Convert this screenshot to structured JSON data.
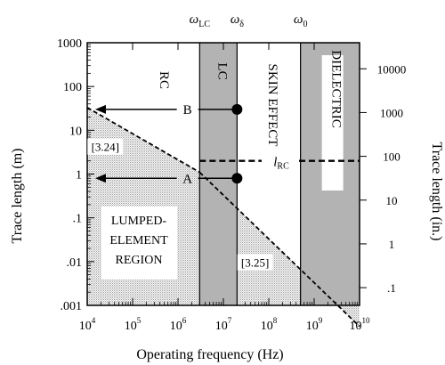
{
  "chart_data": {
    "type": "line",
    "title": "",
    "xlabel": "Operating frequency (Hz)",
    "ylabel": "Trace length (m)",
    "y2label": "Trace length (in.)",
    "x_scale": "log",
    "y_scale": "log",
    "xlim": [
      10000,
      10000000000
    ],
    "ylim": [
      0.001,
      1000
    ],
    "y2lim": [
      0.0394,
      39370
    ],
    "grid": false,
    "legend": "none",
    "x_ticks": [
      {
        "value": 10000,
        "base": "10",
        "exp": "4"
      },
      {
        "value": 100000,
        "base": "10",
        "exp": "5"
      },
      {
        "value": 1000000,
        "base": "10",
        "exp": "6"
      },
      {
        "value": 10000000,
        "base": "10",
        "exp": "7"
      },
      {
        "value": 100000000,
        "base": "10",
        "exp": "8"
      },
      {
        "value": 1000000000,
        "base": "10",
        "exp": "9"
      },
      {
        "value": 10000000000,
        "base": "10",
        "exp": "10"
      }
    ],
    "y_ticks": [
      {
        "value": 1000,
        "label": "1000"
      },
      {
        "value": 100,
        "label": "100"
      },
      {
        "value": 10,
        "label": "10"
      },
      {
        "value": 1,
        "label": "1"
      },
      {
        "value": 0.1,
        "label": ".1"
      },
      {
        "value": 0.01,
        "label": ".01"
      },
      {
        "value": 0.001,
        "label": ".001"
      }
    ],
    "y2_ticks": [
      {
        "value": 10000,
        "label": "10000"
      },
      {
        "value": 1000,
        "label": "1000"
      },
      {
        "value": 100,
        "label": "100"
      },
      {
        "value": 10,
        "label": "10"
      },
      {
        "value": 1,
        "label": "1"
      },
      {
        "value": 0.1,
        "label": ".1"
      }
    ],
    "frequency_markers": [
      {
        "name": "omega-lc",
        "symbol": "ω",
        "subscript": "LC",
        "x": 3000000
      },
      {
        "name": "omega-delta",
        "symbol": "ω",
        "subscript": "δ",
        "x": 20000000
      },
      {
        "name": "omega-0",
        "symbol": "ω",
        "subscript": "0",
        "x": 500000000
      }
    ],
    "regions": [
      {
        "name": "rc",
        "label": "RC",
        "x_from": 10000,
        "x_to": 3000000,
        "shaded": false
      },
      {
        "name": "lc",
        "label": "LC",
        "x_from": 3000000,
        "x_to": 20000000,
        "shaded": true
      },
      {
        "name": "skin-effect",
        "label": "SKIN EFFECT",
        "x_from": 20000000,
        "x_to": 500000000,
        "shaded": false
      },
      {
        "name": "dielectric",
        "label": "DIELECTRIC",
        "x_from": 500000000,
        "x_to": 10000000000,
        "shaded": true
      }
    ],
    "series": [
      {
        "name": "[3.24]",
        "style": "dashed",
        "x": [
          10000,
          3000000
        ],
        "y": [
          33,
          1.1
        ]
      },
      {
        "name": "[3.25]",
        "style": "dashed",
        "x": [
          3000000,
          10000000000
        ],
        "y": [
          1.1,
          0.00033
        ]
      }
    ],
    "rc_threshold": {
      "symbol": "l",
      "subscript": "RC",
      "y": 2,
      "x_from": 3000000,
      "x_to": 10000000000
    },
    "lumped_region": {
      "label_lines": [
        "LUMPED-",
        "ELEMENT",
        "REGION"
      ]
    },
    "points": [
      {
        "name": "B",
        "label": "B",
        "x": 20000000,
        "y": 30,
        "arrow_to_x": 15000
      },
      {
        "name": "A",
        "label": "A",
        "x": 20000000,
        "y": 0.8,
        "arrow_to_x": 15000
      }
    ],
    "annotations": [
      {
        "name": "eq-3-24",
        "text": "[3.24]",
        "x": 25000,
        "y": 3.5
      },
      {
        "name": "eq-3-25",
        "text": "[3.25]",
        "x": 50000000,
        "y": 0.008
      }
    ]
  }
}
